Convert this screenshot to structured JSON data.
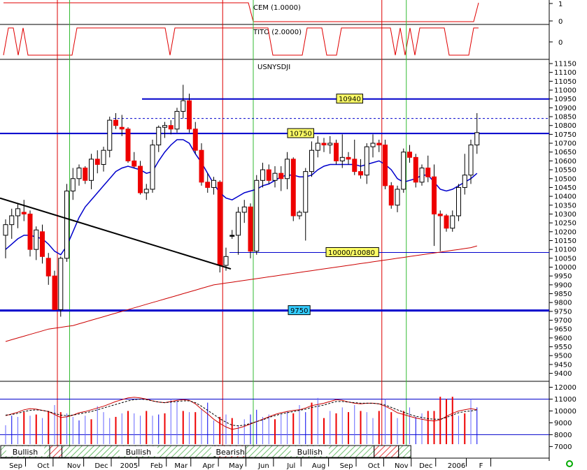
{
  "chart_data": {
    "type": "candlestick",
    "symbol": "USNYSDJI",
    "indicators": {
      "cem": {
        "title": "CEM (1.0000)",
        "axis_ticks": [
          "1",
          "0"
        ],
        "states": [
          1,
          1,
          1,
          1,
          1,
          1,
          1,
          1,
          1,
          1,
          1,
          1,
          1,
          1,
          1,
          1,
          1,
          1,
          1,
          1,
          1,
          1,
          1,
          1,
          1,
          1,
          1,
          1,
          1,
          1,
          1,
          1,
          1,
          1,
          1,
          1,
          1,
          1,
          1,
          1,
          1,
          1,
          1,
          1,
          1,
          1,
          1,
          1,
          1,
          1,
          1,
          0,
          0,
          0,
          0,
          0,
          0,
          0,
          0,
          0,
          0,
          0,
          0,
          0,
          0,
          0,
          0,
          0,
          0,
          0,
          0,
          0,
          0,
          0,
          0,
          0,
          0,
          0,
          0,
          0,
          0,
          0,
          0,
          0,
          0,
          0,
          0,
          0,
          0,
          0,
          0,
          0,
          0,
          0,
          0,
          0,
          0,
          1
        ]
      },
      "tito": {
        "title": "TITO (2.0000)",
        "axis_ticks": [
          "0"
        ],
        "states": [
          0,
          1,
          1,
          0,
          1,
          0,
          0,
          0,
          0,
          0,
          0,
          0,
          0,
          0,
          0,
          1,
          1,
          1,
          1,
          1,
          1,
          1,
          1,
          1,
          1,
          1,
          1,
          1,
          1,
          1,
          1,
          1,
          1,
          1,
          0,
          1,
          1,
          1,
          1,
          1,
          1,
          1,
          1,
          1,
          1,
          1,
          1,
          1,
          1,
          1,
          1,
          1,
          1,
          1,
          1,
          0,
          0,
          0,
          0,
          0,
          0,
          0,
          1,
          1,
          1,
          1,
          0,
          0,
          0,
          1,
          1,
          1,
          1,
          1,
          1,
          1,
          1,
          1,
          1,
          1,
          0,
          1,
          0,
          1,
          0,
          1,
          1,
          1,
          1,
          1,
          1,
          0,
          0,
          0,
          0,
          0,
          1,
          1
        ]
      }
    },
    "price_axis": {
      "min": 9400,
      "max": 11150,
      "step": 50
    },
    "months": [
      "Sep",
      "Oct",
      "Nov",
      "Dec",
      "2005",
      "Feb",
      "Mar",
      "Apr",
      "May",
      "Jun",
      "Jul",
      "Aug",
      "Sep",
      "Oct",
      "Nov",
      "Dec",
      "2006",
      "F"
    ],
    "candles": [
      {
        "o": 10180,
        "h": 10270,
        "l": 10050,
        "c": 10240
      },
      {
        "o": 10240,
        "h": 10330,
        "l": 10160,
        "c": 10290
      },
      {
        "o": 10290,
        "h": 10360,
        "l": 10220,
        "c": 10330
      },
      {
        "o": 10310,
        "h": 10380,
        "l": 10260,
        "c": 10300
      },
      {
        "o": 10300,
        "h": 10320,
        "l": 10060,
        "c": 10100
      },
      {
        "o": 10100,
        "h": 10230,
        "l": 10040,
        "c": 10210
      },
      {
        "o": 10200,
        "h": 10240,
        "l": 10020,
        "c": 10060
      },
      {
        "o": 10050,
        "h": 10080,
        "l": 9900,
        "c": 9950
      },
      {
        "o": 9950,
        "h": 9980,
        "l": 9760,
        "c": 9760
      },
      {
        "o": 9760,
        "h": 10060,
        "l": 9720,
        "c": 10050
      },
      {
        "o": 10050,
        "h": 10470,
        "l": 10030,
        "c": 10430
      },
      {
        "o": 10430,
        "h": 10560,
        "l": 10380,
        "c": 10500
      },
      {
        "o": 10500,
        "h": 10580,
        "l": 10460,
        "c": 10560
      },
      {
        "o": 10560,
        "h": 10570,
        "l": 10470,
        "c": 10490
      },
      {
        "o": 10490,
        "h": 10640,
        "l": 10440,
        "c": 10610
      },
      {
        "o": 10610,
        "h": 10660,
        "l": 10530,
        "c": 10580
      },
      {
        "o": 10580,
        "h": 10680,
        "l": 10540,
        "c": 10660
      },
      {
        "o": 10660,
        "h": 10850,
        "l": 10620,
        "c": 10830
      },
      {
        "o": 10830,
        "h": 10870,
        "l": 10780,
        "c": 10800
      },
      {
        "o": 10790,
        "h": 10860,
        "l": 10740,
        "c": 10780
      },
      {
        "o": 10780,
        "h": 10790,
        "l": 10590,
        "c": 10600
      },
      {
        "o": 10600,
        "h": 10650,
        "l": 10560,
        "c": 10570
      },
      {
        "o": 10570,
        "h": 10600,
        "l": 10410,
        "c": 10420
      },
      {
        "o": 10420,
        "h": 10470,
        "l": 10380,
        "c": 10440
      },
      {
        "o": 10440,
        "h": 10720,
        "l": 10420,
        "c": 10690
      },
      {
        "o": 10690,
        "h": 10800,
        "l": 10650,
        "c": 10790
      },
      {
        "o": 10790,
        "h": 10820,
        "l": 10730,
        "c": 10800
      },
      {
        "o": 10800,
        "h": 10830,
        "l": 10750,
        "c": 10780
      },
      {
        "o": 10780,
        "h": 10900,
        "l": 10760,
        "c": 10880
      },
      {
        "o": 10880,
        "h": 11030,
        "l": 10840,
        "c": 10940
      },
      {
        "o": 10940,
        "h": 10980,
        "l": 10760,
        "c": 10780
      },
      {
        "o": 10780,
        "h": 10820,
        "l": 10640,
        "c": 10660
      },
      {
        "o": 10660,
        "h": 10700,
        "l": 10460,
        "c": 10480
      },
      {
        "o": 10480,
        "h": 10530,
        "l": 10420,
        "c": 10450
      },
      {
        "o": 10450,
        "h": 10510,
        "l": 10410,
        "c": 10490
      },
      {
        "o": 10480,
        "h": 10490,
        "l": 9970,
        "c": 10010
      },
      {
        "o": 10010,
        "h": 10110,
        "l": 9980,
        "c": 10060
      },
      {
        "o": 10180,
        "h": 10210,
        "l": 10160,
        "c": 10180
      },
      {
        "o": 10180,
        "h": 10340,
        "l": 10070,
        "c": 10310
      },
      {
        "o": 10310,
        "h": 10380,
        "l": 10250,
        "c": 10340
      },
      {
        "o": 10340,
        "h": 10360,
        "l": 10050,
        "c": 10090
      },
      {
        "o": 10090,
        "h": 10520,
        "l": 10070,
        "c": 10490
      },
      {
        "o": 10490,
        "h": 10590,
        "l": 10450,
        "c": 10550
      },
      {
        "o": 10550,
        "h": 10580,
        "l": 10470,
        "c": 10490
      },
      {
        "o": 10490,
        "h": 10570,
        "l": 10450,
        "c": 10530
      },
      {
        "o": 10530,
        "h": 10570,
        "l": 10430,
        "c": 10500
      },
      {
        "o": 10500,
        "h": 10650,
        "l": 10440,
        "c": 10610
      },
      {
        "o": 10610,
        "h": 10620,
        "l": 10260,
        "c": 10290
      },
      {
        "o": 10290,
        "h": 10320,
        "l": 10270,
        "c": 10310
      },
      {
        "o": 10310,
        "h": 10560,
        "l": 10150,
        "c": 10540
      },
      {
        "o": 10540,
        "h": 10710,
        "l": 10510,
        "c": 10660
      },
      {
        "o": 10660,
        "h": 10740,
        "l": 10620,
        "c": 10700
      },
      {
        "o": 10700,
        "h": 10730,
        "l": 10650,
        "c": 10690
      },
      {
        "o": 10690,
        "h": 10740,
        "l": 10640,
        "c": 10700
      },
      {
        "o": 10700,
        "h": 10720,
        "l": 10580,
        "c": 10600
      },
      {
        "o": 10600,
        "h": 10750,
        "l": 10560,
        "c": 10620
      },
      {
        "o": 10620,
        "h": 10650,
        "l": 10580,
        "c": 10610
      },
      {
        "o": 10610,
        "h": 10720,
        "l": 10520,
        "c": 10540
      },
      {
        "o": 10540,
        "h": 10610,
        "l": 10500,
        "c": 10520
      },
      {
        "o": 10520,
        "h": 10700,
        "l": 10470,
        "c": 10680
      },
      {
        "o": 10680,
        "h": 10750,
        "l": 10620,
        "c": 10700
      },
      {
        "o": 10700,
        "h": 10720,
        "l": 10650,
        "c": 10690
      },
      {
        "o": 10690,
        "h": 10720,
        "l": 10440,
        "c": 10460
      },
      {
        "o": 10460,
        "h": 10480,
        "l": 10330,
        "c": 10350
      },
      {
        "o": 10350,
        "h": 10460,
        "l": 10310,
        "c": 10440
      },
      {
        "o": 10440,
        "h": 10670,
        "l": 10420,
        "c": 10650
      },
      {
        "o": 10650,
        "h": 10690,
        "l": 10590,
        "c": 10620
      },
      {
        "o": 10620,
        "h": 10640,
        "l": 10450,
        "c": 10480
      },
      {
        "o": 10480,
        "h": 10580,
        "l": 10460,
        "c": 10560
      },
      {
        "o": 10560,
        "h": 10630,
        "l": 10480,
        "c": 10510
      },
      {
        "o": 10510,
        "h": 10580,
        "l": 10120,
        "c": 10300
      },
      {
        "o": 10300,
        "h": 10320,
        "l": 10090,
        "c": 10290
      },
      {
        "o": 10290,
        "h": 10300,
        "l": 10200,
        "c": 10220
      },
      {
        "o": 10220,
        "h": 10320,
        "l": 10200,
        "c": 10290
      },
      {
        "o": 10290,
        "h": 10470,
        "l": 10260,
        "c": 10450
      },
      {
        "o": 10450,
        "h": 10640,
        "l": 10410,
        "c": 10520
      },
      {
        "o": 10520,
        "h": 10720,
        "l": 10470,
        "c": 10690
      },
      {
        "o": 10690,
        "h": 10870,
        "l": 10640,
        "c": 10760
      }
    ],
    "moving_average_short": [
      10100,
      10130,
      10160,
      10180,
      10180,
      10170,
      10160,
      10130,
      10090,
      10070,
      10120,
      10200,
      10280,
      10340,
      10380,
      10420,
      10460,
      10500,
      10540,
      10560,
      10570,
      10560,
      10550,
      10530,
      10540,
      10600,
      10650,
      10690,
      10720,
      10720,
      10700,
      10640,
      10590,
      10530,
      10470,
      10420,
      10390,
      10380,
      10400,
      10420,
      10430,
      10440,
      10460,
      10470,
      10490,
      10510,
      10520,
      10520,
      10510,
      10510,
      10520,
      10550,
      10570,
      10580,
      10580,
      10580,
      10580,
      10580,
      10570,
      10580,
      10590,
      10600,
      10580,
      10550,
      10500,
      10480,
      10490,
      10500,
      10520,
      10520,
      10480,
      10440,
      10430,
      10440,
      10460,
      10480,
      10500,
      10530
    ],
    "moving_average_long": [
      9580,
      9590,
      9600,
      9610,
      9620,
      9630,
      9640,
      9650,
      9655,
      9660,
      9665,
      9670,
      9680,
      9690,
      9700,
      9710,
      9720,
      9730,
      9740,
      9750,
      9760,
      9770,
      9780,
      9790,
      9800,
      9810,
      9820,
      9830,
      9840,
      9850,
      9860,
      9870,
      9880,
      9890,
      9900,
      9905,
      9910,
      9915,
      9920,
      9925,
      9930,
      9935,
      9940,
      9945,
      9950,
      9955,
      9960,
      9965,
      9970,
      9975,
      9980,
      9985,
      9990,
      9995,
      10000,
      10005,
      10010,
      10015,
      10020,
      10025,
      10030,
      10035,
      10040,
      10045,
      10050,
      10055,
      10060,
      10065,
      10070,
      10075,
      10080,
      10085,
      10090,
      10095,
      10100,
      10105,
      10110,
      10120
    ],
    "levels": [
      {
        "label": "10940",
        "value": 10950
      },
      {
        "label": "10750",
        "value": 10755
      },
      {
        "label": "10000/10080",
        "value": 10083
      },
      {
        "label": "9750",
        "value": 9755
      }
    ],
    "resistance_dashed": 10840,
    "trendline": [
      {
        "i": 0,
        "v": 10390
      },
      {
        "i": 36,
        "v": 9990
      }
    ],
    "signal_bars_red": [
      3,
      5,
      7,
      9,
      14,
      18,
      20,
      23,
      26,
      29,
      31,
      35,
      37,
      44,
      47,
      50,
      52,
      54,
      56,
      58,
      61,
      63,
      65,
      69,
      70,
      71,
      72,
      73,
      75
    ],
    "signal_bars_blue": [
      1,
      12,
      25,
      33,
      40,
      41,
      49,
      67,
      77
    ],
    "volume_axis": {
      "ticks": [
        "12000",
        "11000",
        "10000",
        "9000",
        "8000",
        "7000"
      ]
    },
    "volume_top": 11000,
    "volume_base": 8000,
    "volume_blue_line": 8000,
    "volume_values": [
      8800,
      9600,
      9500,
      9900,
      9600,
      9700,
      9400,
      10000,
      10500,
      9900,
      9800,
      9500,
      9200,
      9600,
      9300,
      10400,
      9900,
      9400,
      9500,
      9800,
      10000,
      9800,
      9600,
      10000,
      9600,
      9700,
      9800,
      11000,
      10900,
      10000,
      9900,
      9900,
      10200,
      10700,
      9200,
      9500,
      9700,
      9400,
      8800,
      9300,
      9700,
      10100,
      9500,
      9700,
      9300,
      9700,
      10000,
      9800,
      10500,
      9900,
      10700,
      11100,
      9400,
      10000,
      9800,
      10300,
      9900,
      10500,
      10000,
      9900,
      9400,
      10000,
      11000,
      9900,
      9400,
      10000,
      10300,
      9500,
      9800,
      10000,
      10000,
      11200,
      11000,
      11200,
      9600,
      9800,
      11000,
      10300
    ],
    "oscillator_a": [
      9600,
      9750,
      9900,
      10100,
      10200,
      10150,
      10050,
      9950,
      9700,
      9450,
      9500,
      9650,
      9850,
      9950,
      10100,
      10250,
      10400,
      10600,
      10800,
      10950,
      11100,
      11150,
      11100,
      11000,
      10850,
      10750,
      10700,
      10800,
      10900,
      10950,
      10900,
      10600,
      10150,
      9750,
      9300,
      8950,
      8650,
      8450,
      8550,
      8700,
      8900,
      9100,
      9300,
      9500,
      9700,
      9850,
      9950,
      10050,
      10100,
      10250,
      10450,
      10550,
      10650,
      10800,
      10950,
      10900,
      10750,
      10650,
      10600,
      10650,
      10650,
      10600,
      10400,
      10150,
      9850,
      9700,
      9550,
      9400,
      9300,
      9200,
      9150,
      9250,
      9550,
      9800,
      10000,
      10100,
      10200,
      10100
    ],
    "oscillator_b": [
      9650,
      9700,
      9800,
      9950,
      10050,
      10100,
      10050,
      9950,
      9800,
      9650,
      9600,
      9650,
      9750,
      9850,
      9950,
      10100,
      10250,
      10400,
      10550,
      10700,
      10850,
      10950,
      11000,
      10950,
      10850,
      10750,
      10700,
      10750,
      10800,
      10850,
      10850,
      10700,
      10400,
      10050,
      9700,
      9350,
      9050,
      8800,
      8750,
      8800,
      8950,
      9100,
      9250,
      9450,
      9600,
      9750,
      9850,
      9950,
      10050,
      10150,
      10300,
      10400,
      10500,
      10650,
      10800,
      10800,
      10750,
      10700,
      10650,
      10650,
      10650,
      10600,
      10500,
      10300,
      10100,
      9900,
      9700,
      9550,
      9450,
      9350,
      9300,
      9300,
      9450,
      9650,
      9850,
      9950,
      10000,
      10100
    ],
    "regimes": [
      {
        "label": "Bullish",
        "start": 0,
        "end": 8,
        "hatched": false
      },
      {
        "label": "",
        "start": 8,
        "end": 10,
        "hatched": true
      },
      {
        "label": "Bullish",
        "start": 10,
        "end": 35,
        "hatched": false
      },
      {
        "label": "Bearish",
        "start": 35,
        "end": 40,
        "hatched": true
      },
      {
        "label": "Bullish",
        "start": 40,
        "end": 61,
        "hatched": false
      },
      {
        "label": "",
        "start": 61,
        "end": 65,
        "hatched": true
      },
      {
        "label": "",
        "start": 65,
        "end": 67,
        "hatched": false
      }
    ],
    "vertical_lines_red": [
      8,
      35,
      61
    ],
    "vertical_lines_green": [
      10,
      40,
      65
    ],
    "month_positions": [
      2,
      6.5,
      11.5,
      16,
      20.5,
      25,
      29,
      33.5,
      38,
      42.5,
      47,
      51.5,
      56,
      60.5,
      65,
      69,
      74,
      78
    ]
  }
}
